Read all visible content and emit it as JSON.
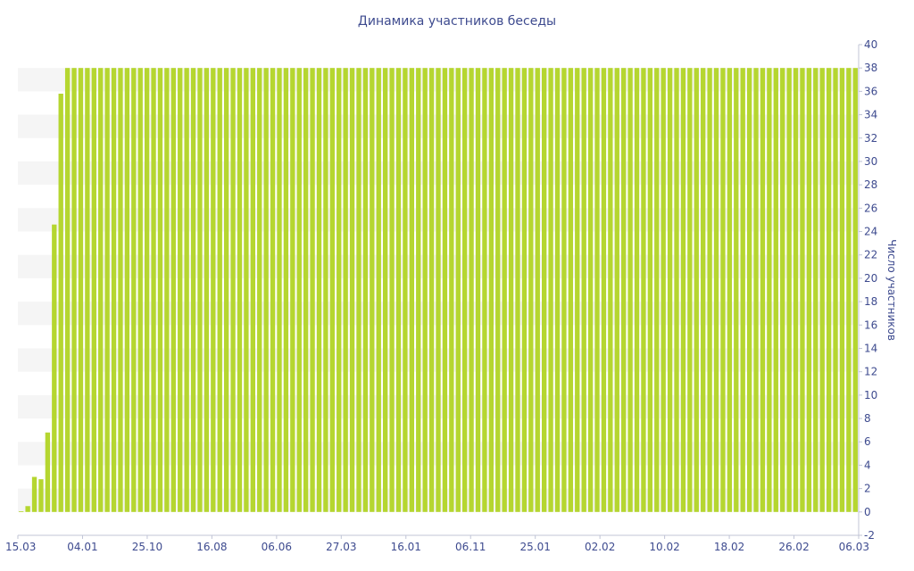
{
  "chart_data": {
    "type": "bar",
    "title": "Динамика участников беседы",
    "xlabel": "",
    "ylabel": "Число участников",
    "ylim": [
      -2,
      40
    ],
    "y_ticks": [
      -2,
      0,
      2,
      4,
      6,
      8,
      10,
      12,
      14,
      16,
      18,
      20,
      22,
      24,
      26,
      28,
      30,
      32,
      34,
      36,
      38,
      40
    ],
    "x_tick_labels": [
      "15.03",
      "04.01",
      "25.10",
      "16.08",
      "06.06",
      "27.03",
      "16.01",
      "06.11",
      "25.01",
      "02.02",
      "10.02",
      "18.02",
      "26.02",
      "06.03"
    ],
    "y_axis_position": "right",
    "bar_count": 127,
    "values": [
      0,
      0.5,
      3,
      2.8,
      6.8,
      24.6,
      35.8,
      38,
      38,
      38,
      38,
      38,
      38,
      38,
      38,
      38,
      38,
      38,
      38,
      38,
      38,
      38,
      38,
      38,
      38,
      38,
      38,
      38,
      38,
      38,
      38,
      38,
      38,
      38,
      38,
      38,
      38,
      38,
      38,
      38,
      38,
      38,
      38,
      38,
      38,
      38,
      38,
      38,
      38,
      38,
      38,
      38,
      38,
      38,
      38,
      38,
      38,
      38,
      38,
      38,
      38,
      38,
      38,
      38,
      38,
      38,
      38,
      38,
      38,
      38,
      38,
      38,
      38,
      38,
      38,
      38,
      38,
      38,
      38,
      38,
      38,
      38,
      38,
      38,
      38,
      38,
      38,
      38,
      38,
      38,
      38,
      38,
      38,
      38,
      38,
      38,
      38,
      38,
      38,
      38,
      38,
      38,
      38,
      38,
      38,
      38,
      38,
      38,
      38,
      38,
      38,
      38,
      38,
      38,
      38,
      38,
      38,
      38,
      38,
      38,
      38,
      38,
      38,
      38,
      38,
      38,
      38
    ],
    "bar_color": "#b5d630",
    "band_color": "#f5f5f5",
    "text_color": "#3e4b8f",
    "grid": "alternating-bands",
    "legend": "none"
  }
}
